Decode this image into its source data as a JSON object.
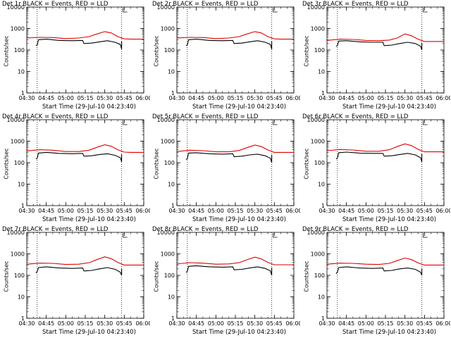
{
  "colors": {
    "events": "#000000",
    "lld": "#e00000",
    "axes": "#000000"
  },
  "panels": [
    {
      "title": "Det 1r BLACK = Events, RED = LLD",
      "xlabel": "Start Time (29-Jul-10 04:23:40)",
      "ylabel": "Counts/sec"
    },
    {
      "title": "Det 2r BLACK = Events, RED = LLD",
      "xlabel": "Start Time (29-Jul-10 04:23:40)",
      "ylabel": "Counts/sec"
    },
    {
      "title": "Det 3r BLACK = Events, RED = LLD",
      "xlabel": "Start Time (29-Jul-10 04:23:40)",
      "ylabel": "Counts/sec"
    },
    {
      "title": "Det 4r BLACK = Events, RED = LLD",
      "xlabel": "Start Time (29-Jul-10 04:23:40)",
      "ylabel": "Counts/sec"
    },
    {
      "title": "Det 5r BLACK = Events, RED = LLD",
      "xlabel": "Start Time (29-Jul-10 04:23:40)",
      "ylabel": "Counts/sec"
    },
    {
      "title": "Det 6r BLACK = Events, RED = LLD",
      "xlabel": "Start Time (29-Jul-10 04:23:40)",
      "ylabel": "Counts/sec"
    },
    {
      "title": "Det 7r BLACK = Events, RED = LLD",
      "xlabel": "Start Time (29-Jul-10 04:23:40)",
      "ylabel": "Counts/sec"
    },
    {
      "title": "Det 8r BLACK = Events, RED = LLD",
      "xlabel": "Start Time (29-Jul-10 04:23:40)",
      "ylabel": "Counts/sec"
    },
    {
      "title": "Det 9r BLACK = Events, RED = LLD",
      "xlabel": "Start Time (29-Jul-10 04:23:40)",
      "ylabel": "Counts/sec"
    }
  ],
  "chart_data": [
    {
      "type": "line",
      "title": "Det 1r BLACK = Events, RED = LLD",
      "xlabel": "Start Time (29-Jul-10 04:23:40)",
      "ylabel": "Counts/sec",
      "yscale": "log",
      "ylim": [
        1,
        10000
      ],
      "xticks": [
        "04:30",
        "04:45",
        "05:00",
        "05:15",
        "05:30",
        "05:45",
        "06:00"
      ],
      "yticks": [
        "1",
        "10",
        "100",
        "1000",
        "10000"
      ],
      "vlines": [
        "04:38",
        "05:43"
      ],
      "series": [
        {
          "name": "Events",
          "x": [
            "04:37",
            "04:38",
            "04:39",
            "04:45",
            "04:55",
            "05:05",
            "05:13",
            "05:14",
            "05:20",
            "05:26",
            "05:32",
            "05:38",
            "05:42",
            "05:43",
            "05:43"
          ],
          "y": [
            160,
            170,
            300,
            320,
            280,
            270,
            280,
            200,
            210,
            240,
            270,
            230,
            180,
            110,
            250
          ]
        },
        {
          "name": "LLD",
          "x": [
            "04:30",
            "04:40",
            "04:50",
            "05:00",
            "05:10",
            "05:18",
            "05:24",
            "05:30",
            "05:35",
            "05:40",
            "05:45",
            "05:50",
            "06:00"
          ],
          "y": [
            360,
            390,
            380,
            340,
            360,
            420,
            560,
            720,
            620,
            420,
            330,
            320,
            320
          ]
        }
      ]
    },
    {
      "type": "line",
      "title": "Det 2r BLACK = Events, RED = LLD",
      "xlabel": "Start Time (29-Jul-10 04:23:40)",
      "ylabel": "Counts/sec",
      "yscale": "log",
      "ylim": [
        1,
        10000
      ],
      "xticks": [
        "04:30",
        "04:45",
        "05:00",
        "05:15",
        "05:30",
        "05:45",
        "06:00"
      ],
      "yticks": [
        "1",
        "10",
        "100",
        "1000",
        "10000"
      ],
      "vlines": [
        "04:38",
        "05:43"
      ],
      "series": [
        {
          "name": "Events",
          "x": [
            "04:37",
            "04:38",
            "04:39",
            "04:45",
            "04:55",
            "05:05",
            "05:13",
            "05:14",
            "05:20",
            "05:26",
            "05:32",
            "05:38",
            "05:42",
            "05:43",
            "05:43"
          ],
          "y": [
            160,
            170,
            300,
            320,
            280,
            270,
            280,
            200,
            210,
            240,
            270,
            230,
            180,
            110,
            250
          ]
        },
        {
          "name": "LLD",
          "x": [
            "04:30",
            "04:40",
            "04:50",
            "05:00",
            "05:10",
            "05:18",
            "05:24",
            "05:30",
            "05:35",
            "05:40",
            "05:45",
            "05:50",
            "06:00"
          ],
          "y": [
            360,
            390,
            380,
            340,
            360,
            420,
            560,
            720,
            620,
            420,
            330,
            320,
            320
          ]
        }
      ]
    },
    {
      "type": "line",
      "title": "Det 3r BLACK = Events, RED = LLD",
      "xlabel": "Start Time (29-Jul-10 04:23:40)",
      "ylabel": "Counts/sec",
      "yscale": "log",
      "ylim": [
        1,
        10000
      ],
      "xticks": [
        "04:30",
        "04:45",
        "05:00",
        "05:15",
        "05:30",
        "05:45",
        "06:00"
      ],
      "yticks": [
        "1",
        "10",
        "100",
        "1000",
        "10000"
      ],
      "vlines": [
        "04:38",
        "05:43"
      ],
      "series": [
        {
          "name": "Events",
          "x": [
            "04:37",
            "04:38",
            "04:39",
            "04:45",
            "04:55",
            "05:05",
            "05:13",
            "05:14",
            "05:20",
            "05:26",
            "05:32",
            "05:38",
            "05:42",
            "05:43",
            "05:43"
          ],
          "y": [
            150,
            160,
            260,
            270,
            240,
            230,
            230,
            160,
            170,
            200,
            230,
            200,
            150,
            100,
            220
          ]
        },
        {
          "name": "LLD",
          "x": [
            "04:30",
            "04:40",
            "04:50",
            "05:00",
            "05:10",
            "05:18",
            "05:24",
            "05:30",
            "05:35",
            "05:40",
            "05:45",
            "05:50",
            "06:00"
          ],
          "y": [
            280,
            320,
            310,
            280,
            270,
            290,
            360,
            560,
            460,
            320,
            250,
            250,
            250
          ]
        }
      ]
    },
    {
      "type": "line",
      "title": "Det 4r BLACK = Events, RED = LLD",
      "xlabel": "Start Time (29-Jul-10 04:23:40)",
      "ylabel": "Counts/sec",
      "yscale": "log",
      "ylim": [
        1,
        10000
      ],
      "xticks": [
        "04:30",
        "04:45",
        "05:00",
        "05:15",
        "05:30",
        "05:45",
        "06:00"
      ],
      "yticks": [
        "1",
        "10",
        "100",
        "1000",
        "10000"
      ],
      "vlines": [
        "04:38",
        "05:43"
      ],
      "series": [
        {
          "name": "Events",
          "x": [
            "04:37",
            "04:38",
            "04:39",
            "04:45",
            "04:55",
            "05:05",
            "05:13",
            "05:14",
            "05:20",
            "05:26",
            "05:32",
            "05:38",
            "05:42",
            "05:43",
            "05:43"
          ],
          "y": [
            150,
            160,
            280,
            300,
            270,
            260,
            270,
            200,
            210,
            240,
            260,
            220,
            170,
            110,
            240
          ]
        },
        {
          "name": "LLD",
          "x": [
            "04:30",
            "04:40",
            "04:50",
            "05:00",
            "05:10",
            "05:18",
            "05:24",
            "05:30",
            "05:35",
            "05:40",
            "05:45",
            "05:50",
            "06:00"
          ],
          "y": [
            350,
            400,
            380,
            330,
            330,
            380,
            520,
            680,
            580,
            400,
            310,
            300,
            300
          ]
        }
      ]
    },
    {
      "type": "line",
      "title": "Det 5r BLACK = Events, RED = LLD",
      "xlabel": "Start Time (29-Jul-10 04:23:40)",
      "ylabel": "Counts/sec",
      "yscale": "log",
      "ylim": [
        1,
        10000
      ],
      "xticks": [
        "04:30",
        "04:45",
        "05:00",
        "05:15",
        "05:30",
        "05:45",
        "06:00"
      ],
      "yticks": [
        "1",
        "10",
        "100",
        "1000",
        "10000"
      ],
      "vlines": [
        "04:38",
        "05:43"
      ],
      "series": [
        {
          "name": "Events",
          "x": [
            "04:37",
            "04:38",
            "04:39",
            "04:45",
            "04:55",
            "05:05",
            "05:13",
            "05:14",
            "05:20",
            "05:26",
            "05:32",
            "05:38",
            "05:42",
            "05:43",
            "05:43"
          ],
          "y": [
            140,
            150,
            280,
            290,
            260,
            250,
            260,
            190,
            200,
            230,
            250,
            210,
            160,
            100,
            230
          ]
        },
        {
          "name": "LLD",
          "x": [
            "04:30",
            "04:40",
            "04:50",
            "05:00",
            "05:10",
            "05:18",
            "05:24",
            "05:30",
            "05:35",
            "05:40",
            "05:45",
            "05:50",
            "06:00"
          ],
          "y": [
            330,
            380,
            360,
            320,
            320,
            370,
            500,
            660,
            560,
            390,
            300,
            300,
            300
          ]
        }
      ]
    },
    {
      "type": "line",
      "title": "Det 6r BLACK = Events, RED = LLD",
      "xlabel": "Start Time (29-Jul-10 04:23:40)",
      "ylabel": "Counts/sec",
      "yscale": "log",
      "ylim": [
        1,
        10000
      ],
      "xticks": [
        "04:30",
        "04:45",
        "05:00",
        "05:15",
        "05:30",
        "05:45",
        "06:00"
      ],
      "yticks": [
        "1",
        "10",
        "100",
        "1000",
        "10000"
      ],
      "vlines": [
        "04:38",
        "05:43"
      ],
      "series": [
        {
          "name": "Events",
          "x": [
            "04:37",
            "04:38",
            "04:39",
            "04:45",
            "04:55",
            "05:05",
            "05:13",
            "05:14",
            "05:20",
            "05:26",
            "05:32",
            "05:38",
            "05:42",
            "05:43",
            "05:43"
          ],
          "y": [
            150,
            160,
            290,
            310,
            280,
            270,
            270,
            200,
            210,
            240,
            270,
            230,
            170,
            110,
            250
          ]
        },
        {
          "name": "LLD",
          "x": [
            "04:30",
            "04:40",
            "04:50",
            "05:00",
            "05:10",
            "05:18",
            "05:24",
            "05:30",
            "05:35",
            "05:40",
            "05:45",
            "05:50",
            "06:00"
          ],
          "y": [
            360,
            410,
            390,
            340,
            340,
            400,
            560,
            750,
            620,
            420,
            320,
            320,
            320
          ]
        }
      ]
    },
    {
      "type": "line",
      "title": "Det 7r BLACK = Events, RED = LLD",
      "xlabel": "Start Time (29-Jul-10 04:23:40)",
      "ylabel": "Counts/sec",
      "yscale": "log",
      "ylim": [
        1,
        10000
      ],
      "xticks": [
        "04:30",
        "04:45",
        "05:00",
        "05:15",
        "05:30",
        "05:45",
        "06:00"
      ],
      "yticks": [
        "1",
        "10",
        "100",
        "1000",
        "10000"
      ],
      "vlines": [
        "04:38",
        "05:43"
      ],
      "series": [
        {
          "name": "Events",
          "x": [
            "04:37",
            "04:38",
            "04:39",
            "04:45",
            "04:55",
            "05:05",
            "05:13",
            "05:14",
            "05:20",
            "05:26",
            "05:32",
            "05:38",
            "05:42",
            "05:43",
            "05:43"
          ],
          "y": [
            130,
            150,
            230,
            250,
            220,
            210,
            220,
            160,
            170,
            200,
            230,
            190,
            140,
            100,
            200
          ]
        },
        {
          "name": "LLD",
          "x": [
            "04:30",
            "04:40",
            "04:50",
            "05:00",
            "05:10",
            "05:18",
            "05:24",
            "05:30",
            "05:35",
            "05:40",
            "05:45",
            "05:50",
            "06:00"
          ],
          "y": [
            330,
            370,
            360,
            320,
            330,
            390,
            540,
            730,
            600,
            400,
            300,
            300,
            300
          ]
        }
      ]
    },
    {
      "type": "line",
      "title": "Det 8r BLACK = Events, RED = LLD",
      "xlabel": "Start Time (29-Jul-10 04:23:40)",
      "ylabel": "Counts/sec",
      "yscale": "log",
      "ylim": [
        1,
        10000
      ],
      "xticks": [
        "04:30",
        "04:45",
        "05:00",
        "05:15",
        "05:30",
        "05:45",
        "06:00"
      ],
      "yticks": [
        "1",
        "10",
        "100",
        "1000",
        "10000"
      ],
      "vlines": [
        "04:38",
        "05:43"
      ],
      "series": [
        {
          "name": "Events",
          "x": [
            "04:37",
            "04:38",
            "04:39",
            "04:45",
            "04:55",
            "05:05",
            "05:13",
            "05:14",
            "05:20",
            "05:26",
            "05:32",
            "05:38",
            "05:42",
            "05:43",
            "05:43"
          ],
          "y": [
            140,
            150,
            260,
            280,
            250,
            240,
            250,
            180,
            190,
            220,
            250,
            210,
            160,
            100,
            230
          ]
        },
        {
          "name": "LLD",
          "x": [
            "04:30",
            "04:40",
            "04:50",
            "05:00",
            "05:10",
            "05:18",
            "05:24",
            "05:30",
            "05:35",
            "05:40",
            "05:45",
            "05:50",
            "06:00"
          ],
          "y": [
            340,
            390,
            370,
            330,
            340,
            390,
            530,
            700,
            580,
            400,
            310,
            310,
            310
          ]
        }
      ]
    },
    {
      "type": "line",
      "title": "Det 9r BLACK = Events, RED = LLD",
      "xlabel": "Start Time (29-Jul-10 04:23:40)",
      "ylabel": "Counts/sec",
      "yscale": "log",
      "ylim": [
        1,
        10000
      ],
      "xticks": [
        "04:30",
        "04:45",
        "05:00",
        "05:15",
        "05:30",
        "05:45",
        "06:00"
      ],
      "yticks": [
        "1",
        "10",
        "100",
        "1000",
        "10000"
      ],
      "vlines": [
        "04:38",
        "05:43"
      ],
      "series": [
        {
          "name": "Events",
          "x": [
            "04:37",
            "04:38",
            "04:39",
            "04:45",
            "04:55",
            "05:05",
            "05:13",
            "05:14",
            "05:20",
            "05:26",
            "05:32",
            "05:38",
            "05:42",
            "05:43",
            "05:43"
          ],
          "y": [
            120,
            140,
            230,
            250,
            220,
            210,
            220,
            160,
            170,
            200,
            220,
            190,
            140,
            100,
            200
          ]
        },
        {
          "name": "LLD",
          "x": [
            "04:30",
            "04:40",
            "04:50",
            "05:00",
            "05:10",
            "05:18",
            "05:24",
            "05:30",
            "05:35",
            "05:40",
            "05:45",
            "05:50",
            "06:00"
          ],
          "y": [
            330,
            370,
            360,
            330,
            320,
            360,
            480,
            640,
            540,
            380,
            300,
            300,
            300
          ]
        }
      ]
    }
  ]
}
